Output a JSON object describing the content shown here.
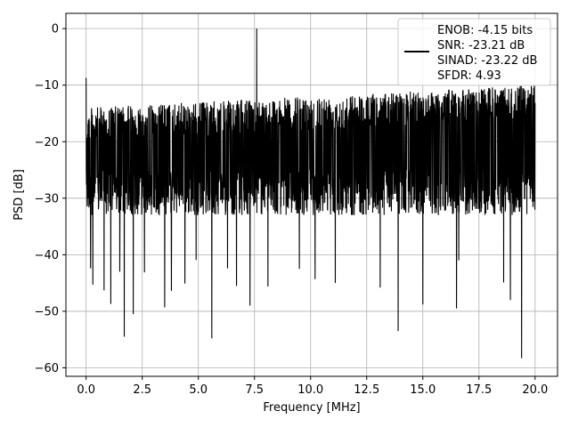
{
  "chart_data": {
    "type": "line",
    "title": "",
    "xlabel": "Frequency [MHz]",
    "ylabel": "PSD [dB]",
    "xlim": [
      -0.9,
      21.0
    ],
    "ylim": [
      -61.5,
      2.7
    ],
    "x_ticks": [
      0.0,
      2.5,
      5.0,
      7.5,
      10.0,
      12.5,
      15.0,
      17.5,
      20.0
    ],
    "x_tick_labels": [
      "0.0",
      "2.5",
      "5.0",
      "7.5",
      "10.0",
      "12.5",
      "15.0",
      "17.5",
      "20.0"
    ],
    "y_ticks": [
      0,
      -10,
      -20,
      -30,
      -40,
      -50,
      -60
    ],
    "y_tick_labels": [
      "0",
      "−10",
      "−20",
      "−30",
      "−40",
      "−50",
      "−60"
    ],
    "grid": true,
    "legend": {
      "placement": "upper-right",
      "lines": [
        "ENOB: -4.15 bits",
        "SNR: -23.21 dB",
        "SINAD: -23.22 dB",
        "SFDR: 4.93"
      ]
    },
    "series": [
      {
        "color": "#000000",
        "x_start": 0.0,
        "x_end": 20.0,
        "noise_top": [
          -10,
          -14
        ],
        "noise_mid": -21,
        "noise_floor": -33,
        "start_value": -9,
        "spikes": [
          {
            "x": 7.6,
            "y": 0.0
          },
          {
            "x": 0.0,
            "y": -8.7
          },
          {
            "x": 1.7,
            "y": -54.5
          },
          {
            "x": 2.1,
            "y": -50.5
          },
          {
            "x": 5.6,
            "y": -54.8
          },
          {
            "x": 7.3,
            "y": -49.0
          },
          {
            "x": 13.9,
            "y": -53.5
          },
          {
            "x": 19.4,
            "y": -58.3
          },
          {
            "x": 16.5,
            "y": -49.5
          },
          {
            "x": 15.0,
            "y": -48.8
          },
          {
            "x": 0.3,
            "y": -45.3
          },
          {
            "x": 0.8,
            "y": -46.3
          },
          {
            "x": 1.1,
            "y": -48.7
          },
          {
            "x": 3.5,
            "y": -49.3
          },
          {
            "x": 3.8,
            "y": -46.4
          },
          {
            "x": 4.4,
            "y": -45.1
          },
          {
            "x": 6.7,
            "y": -45.5
          },
          {
            "x": 8.1,
            "y": -45.6
          },
          {
            "x": 10.2,
            "y": -44.3
          },
          {
            "x": 11.1,
            "y": -45.0
          },
          {
            "x": 13.1,
            "y": -45.8
          },
          {
            "x": 18.6,
            "y": -44.9
          },
          {
            "x": 18.9,
            "y": -48.0
          },
          {
            "x": 0.2,
            "y": -42.4
          },
          {
            "x": 1.5,
            "y": -43.0
          },
          {
            "x": 2.6,
            "y": -43.1
          },
          {
            "x": 4.9,
            "y": -40.9
          },
          {
            "x": 6.3,
            "y": -42.4
          },
          {
            "x": 9.5,
            "y": -42.5
          },
          {
            "x": 16.6,
            "y": -41.0
          }
        ]
      }
    ]
  }
}
